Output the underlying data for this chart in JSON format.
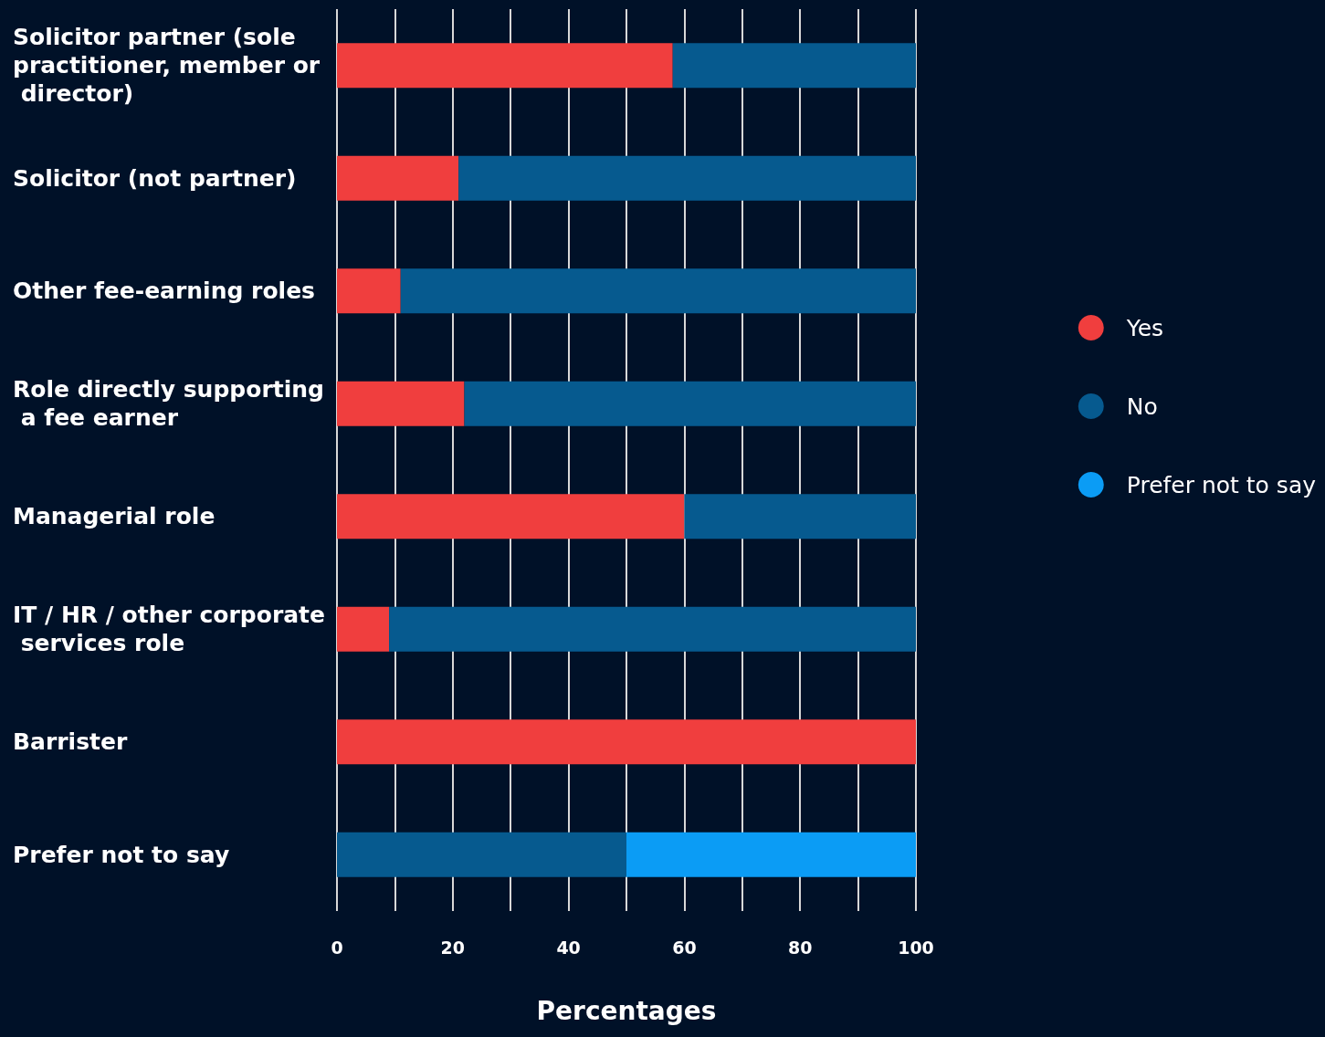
{
  "chart_data": {
    "type": "bar",
    "orientation": "horizontal",
    "stacked": true,
    "categories": [
      "Solicitor partner (sole practitioner, member or director)",
      "Solicitor (not partner)",
      "Other fee-earning roles",
      "Role directly supporting a fee earner",
      "Managerial role",
      "IT / HR / other corporate services role",
      "Barrister",
      "Prefer not to say"
    ],
    "series": [
      {
        "name": "Yes",
        "color": "#f03e3e",
        "values": [
          58,
          21,
          11,
          22,
          60,
          9,
          100,
          0
        ]
      },
      {
        "name": "No",
        "color": "#065a8f",
        "values": [
          42,
          79,
          89,
          78,
          40,
          91,
          0,
          50
        ]
      },
      {
        "name": "Prefer not to say",
        "color": "#0b9cf5",
        "values": [
          0,
          0,
          0,
          0,
          0,
          0,
          0,
          50
        ]
      }
    ],
    "xlim": [
      0,
      100
    ],
    "xticks": [
      0,
      {
        "value": 10,
        "label": null
      },
      20,
      {
        "value": 30,
        "label": null
      },
      40,
      {
        "value": 50,
        "label": null
      },
      60,
      {
        "value": 70,
        "label": null
      },
      80,
      {
        "value": 90,
        "label": null
      },
      100
    ],
    "xlabel": "Percentages",
    "grid": "x",
    "legend": "right"
  }
}
